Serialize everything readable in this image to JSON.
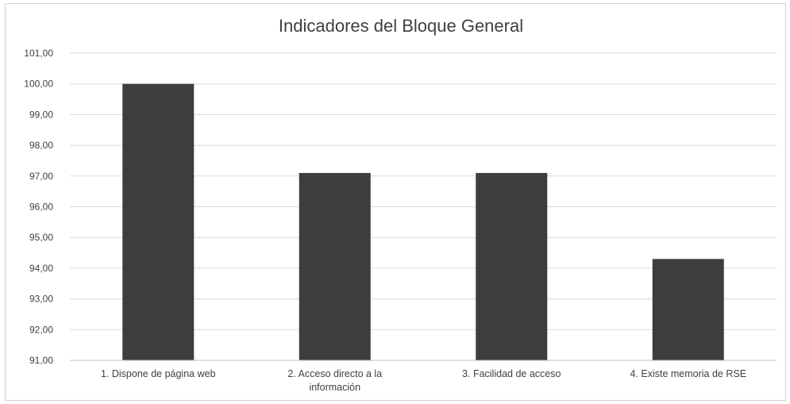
{
  "chart_data": {
    "type": "bar",
    "title": "Indicadores del Bloque General",
    "xlabel": "",
    "ylabel": "",
    "categories": [
      [
        "1. Dispone de página web"
      ],
      [
        "2. Acceso directo a la",
        "información"
      ],
      [
        "3. Facilidad de acceso"
      ],
      [
        "4. Existe memoria de RSE"
      ]
    ],
    "values": [
      100.0,
      97.1,
      97.1,
      94.3
    ],
    "ylim": [
      91,
      101
    ],
    "yticks": [
      "91,00",
      "92,00",
      "93,00",
      "94,00",
      "95,00",
      "96,00",
      "97,00",
      "98,00",
      "99,00",
      "100,00",
      "101,00"
    ],
    "grid": true,
    "legend": "none",
    "bar_color": "#3d3d3d"
  }
}
